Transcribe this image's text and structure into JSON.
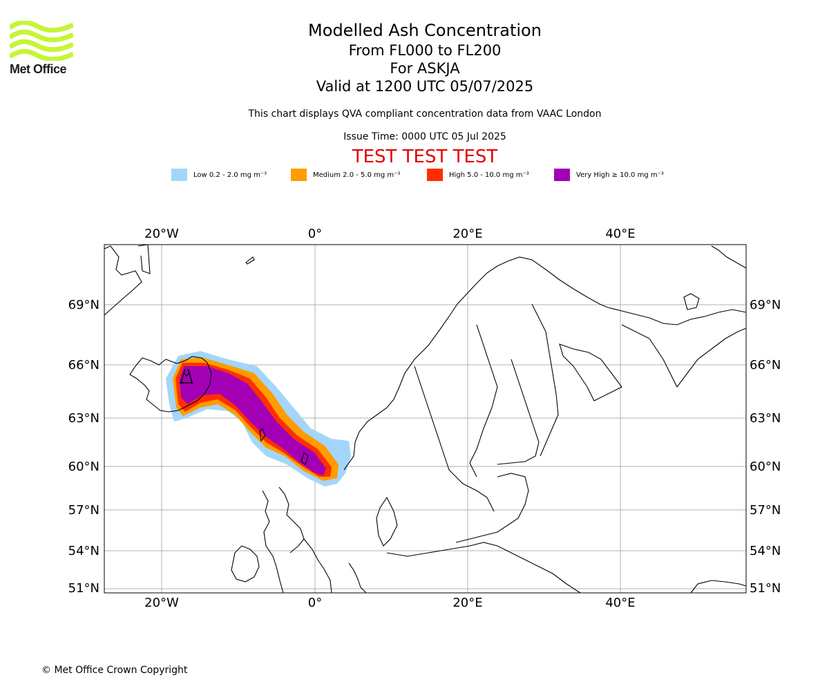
{
  "logo": {
    "text": "Met Office",
    "color": "#c6f536"
  },
  "title": {
    "line1": "Modelled Ash Concentration",
    "line2": "From FL000 to FL200",
    "line3": "For ASKJA",
    "line4": "Valid at 1200 UTC 05/07/2025"
  },
  "subtitle": "This chart displays QVA compliant concentration data from VAAC London",
  "issue_time": "Issue Time: 0000 UTC 05 Jul 2025",
  "test_banner": "TEST TEST TEST",
  "legend": [
    {
      "label": "Low 0.2 - 2.0 mg m⁻³",
      "color": "#a3d6fa"
    },
    {
      "label": "Medium 2.0 - 5.0 mg m⁻³",
      "color": "#ff9c00"
    },
    {
      "label": "High 5.0 - 10.0 mg m⁻³",
      "color": "#ff2e00"
    },
    {
      "label": "Very High ≥ 10.0 mg m⁻³",
      "color": "#a300b5"
    }
  ],
  "map": {
    "lon_labels": [
      "20°W",
      "0°",
      "20°E",
      "40°E"
    ],
    "lat_labels": [
      "69°N",
      "66°N",
      "63°N",
      "60°N",
      "57°N",
      "54°N",
      "51°N"
    ],
    "volcano": "ASKJA"
  },
  "copyright": "© Met Office Crown Copyright"
}
